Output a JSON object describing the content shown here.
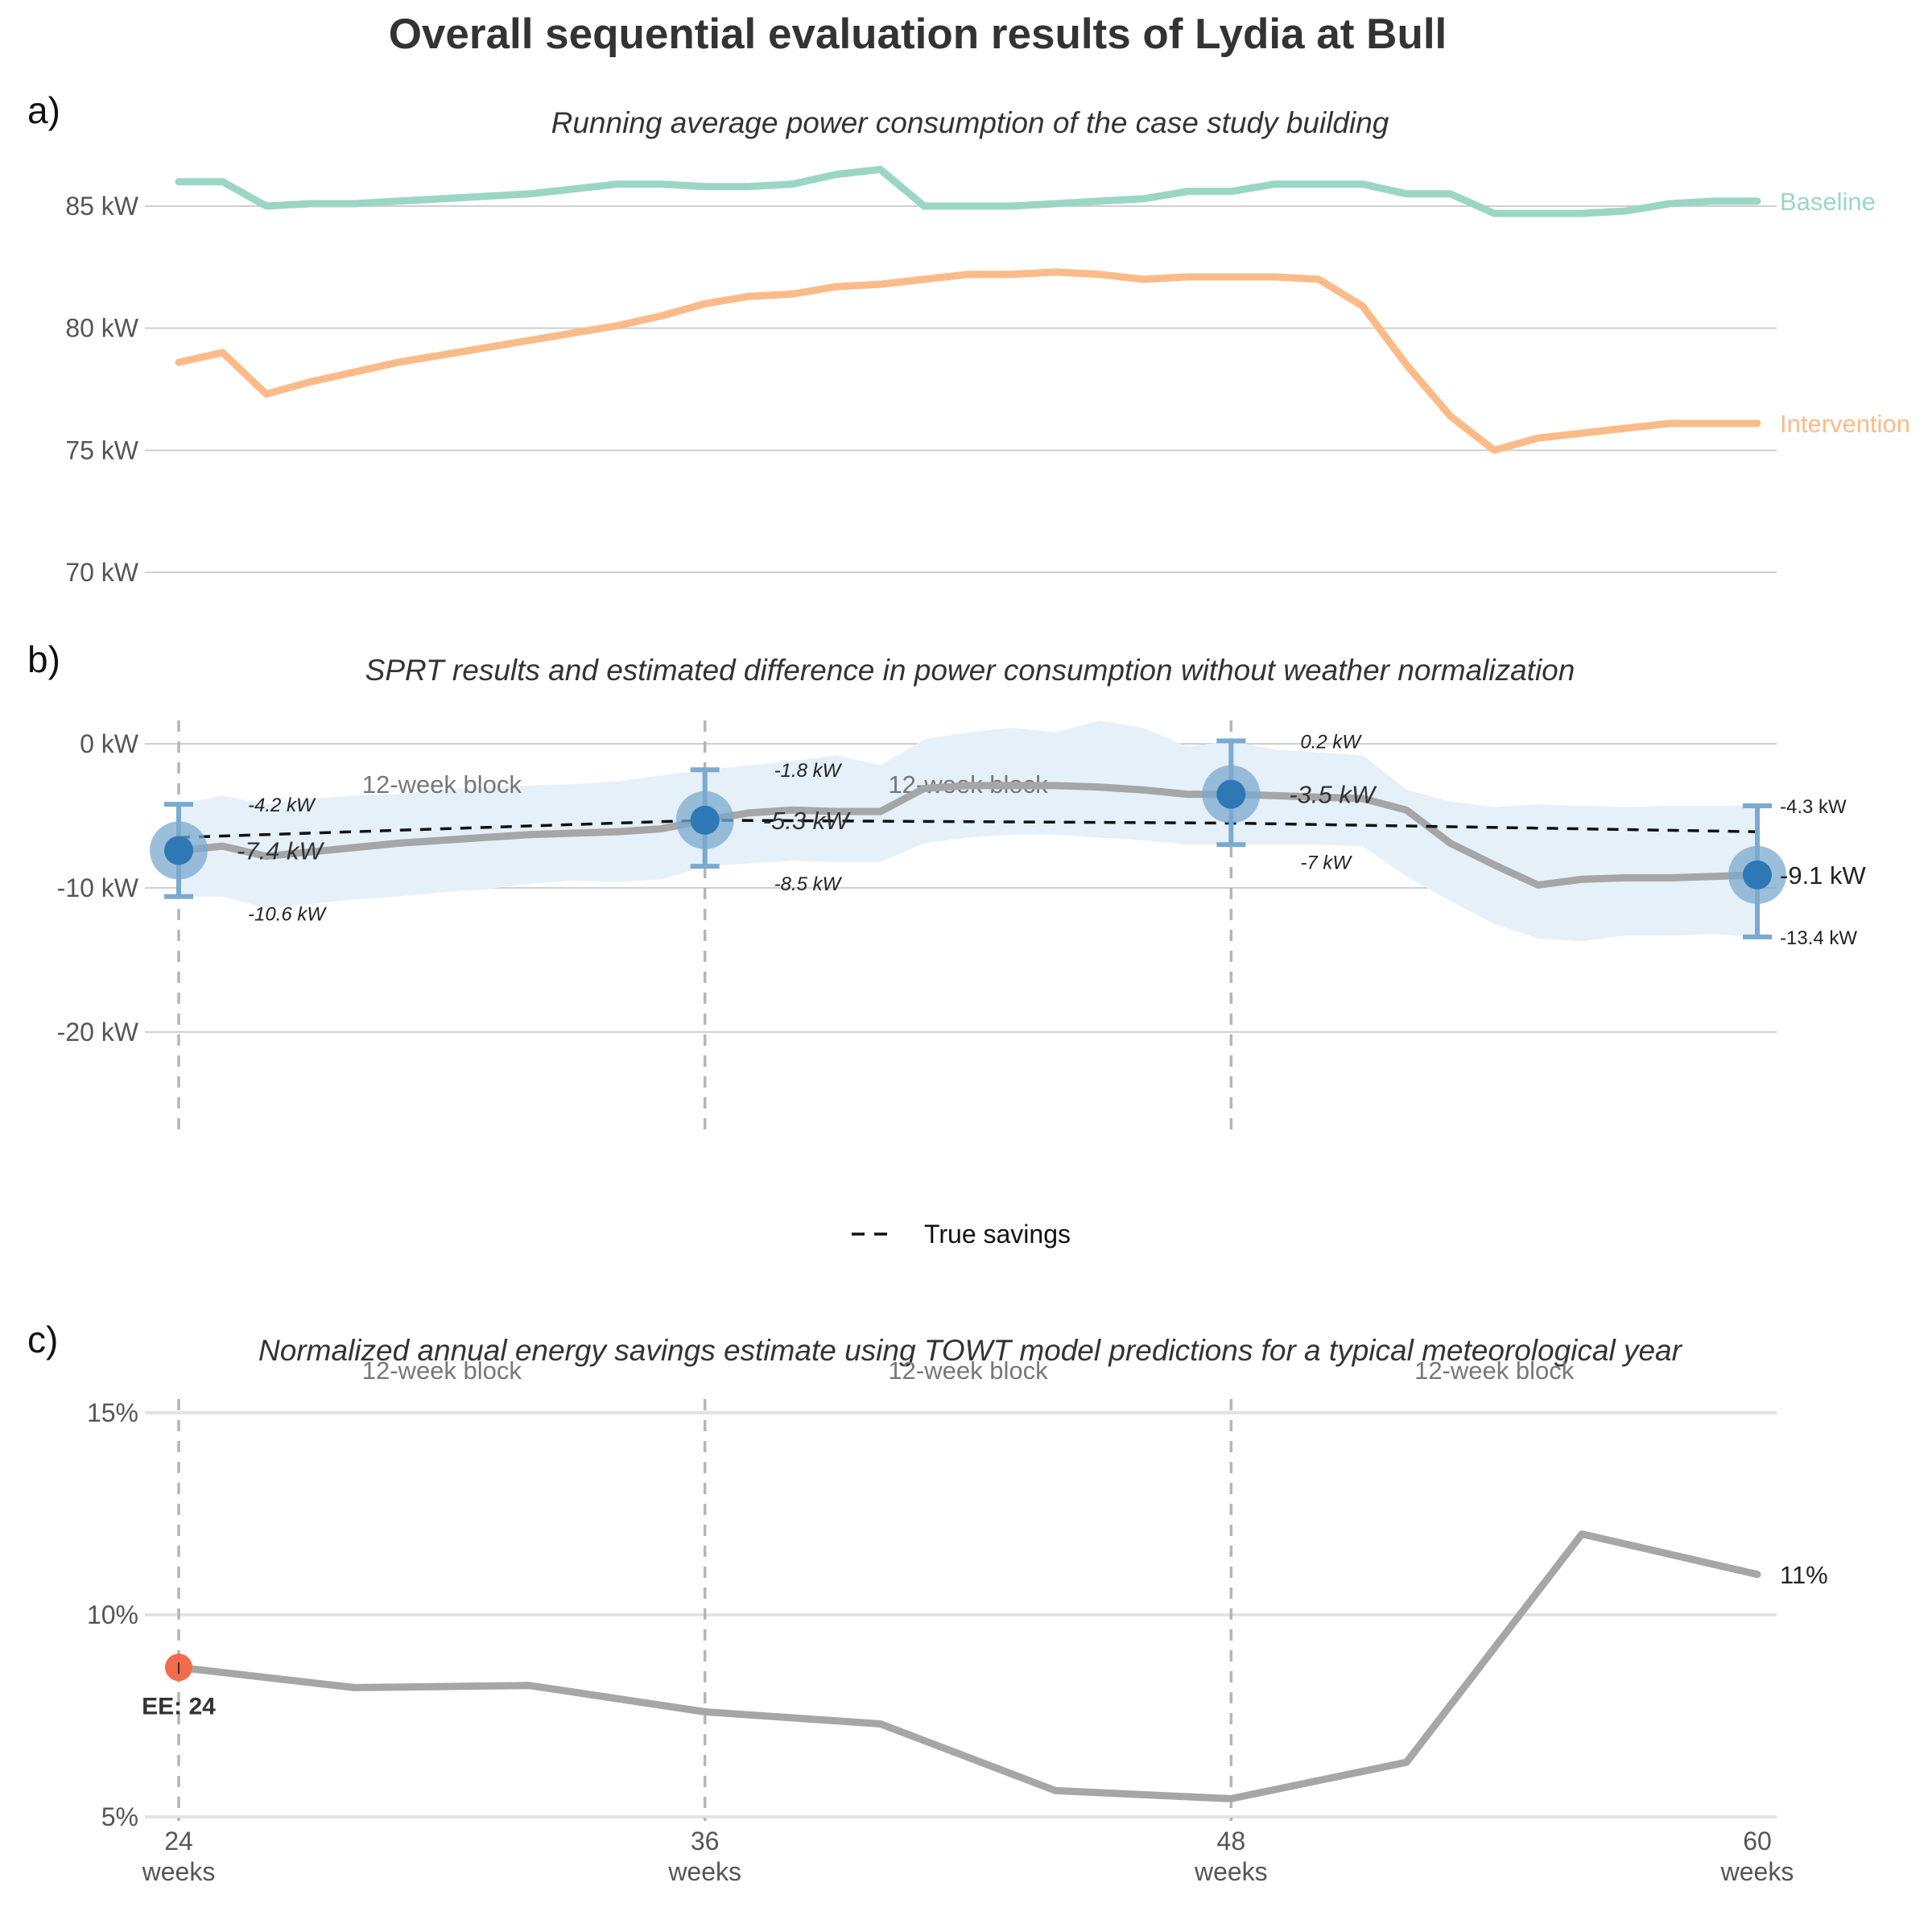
{
  "title": "Overall sequential evaluation results of Lydia at Bull",
  "panels": {
    "a": {
      "letter": "a)",
      "subtitle": "Running average power consumption of the case study building"
    },
    "b": {
      "letter": "b)",
      "subtitle": "SPRT results and estimated difference in power consumption without weather normalization"
    },
    "c": {
      "letter": "c)",
      "subtitle": "Normalized annual energy savings estimate using TOWT model predictions for a typical meteorological year"
    }
  },
  "block_label": "12-week block",
  "legend": {
    "true_savings": "True savings"
  },
  "colors": {
    "baseline": "#9bd6c4",
    "intervention": "#fbbb88",
    "estimate": "#a6a6a6",
    "ci_band": "#e5f0f8",
    "sprt_point": "#2e78b5",
    "sprt_halo": "#7aa9cf",
    "errorbar": "#7aaad0",
    "ee_point": "#f26b4c"
  },
  "chart_data": [
    {
      "id": "a",
      "type": "line",
      "xlim": [
        24,
        60
      ],
      "ylim": [
        68,
        88
      ],
      "yticks": [
        70,
        75,
        80,
        85
      ],
      "ytick_labels": [
        "70 kW",
        "75 kW",
        "80 kW",
        "85 kW"
      ],
      "series": [
        {
          "name": "Baseline",
          "color_key": "baseline",
          "x": [
            24,
            25,
            26,
            27,
            28,
            29,
            30,
            31,
            32,
            33,
            34,
            35,
            36,
            37,
            38,
            39,
            40,
            41,
            42,
            43,
            44,
            45,
            46,
            47,
            48,
            49,
            50,
            51,
            52,
            53,
            54,
            55,
            56,
            57,
            58,
            59,
            60
          ],
          "y": [
            86.0,
            86.0,
            85.0,
            85.1,
            85.1,
            85.2,
            85.3,
            85.4,
            85.5,
            85.7,
            85.9,
            85.9,
            85.8,
            85.8,
            85.9,
            86.3,
            86.5,
            85.0,
            85.0,
            85.0,
            85.1,
            85.2,
            85.3,
            85.6,
            85.6,
            85.9,
            85.9,
            85.9,
            85.5,
            85.5,
            84.7,
            84.7,
            84.7,
            84.8,
            85.1,
            85.2,
            85.2
          ]
        },
        {
          "name": "Intervention",
          "color_key": "intervention",
          "x": [
            24,
            25,
            26,
            27,
            28,
            29,
            30,
            31,
            32,
            33,
            34,
            35,
            36,
            37,
            38,
            39,
            40,
            41,
            42,
            43,
            44,
            45,
            46,
            47,
            48,
            49,
            50,
            51,
            52,
            53,
            54,
            55,
            56,
            57,
            58,
            59,
            60
          ],
          "y": [
            78.6,
            79.0,
            77.3,
            77.8,
            78.2,
            78.6,
            78.9,
            79.2,
            79.5,
            79.8,
            80.1,
            80.5,
            81.0,
            81.3,
            81.4,
            81.7,
            81.8,
            82.0,
            82.2,
            82.2,
            82.3,
            82.2,
            82.0,
            82.1,
            82.1,
            82.1,
            82.0,
            80.9,
            78.5,
            76.4,
            75.0,
            75.5,
            75.7,
            75.9,
            76.1,
            76.1,
            76.1
          ]
        }
      ]
    },
    {
      "id": "b",
      "type": "line",
      "xlim": [
        24,
        60
      ],
      "ylim": [
        -27,
        2
      ],
      "yticks": [
        0,
        -10,
        -20
      ],
      "ytick_labels": [
        "0 kW",
        "-10 kW",
        "-20 kW"
      ],
      "estimate": {
        "x": [
          24,
          25,
          26,
          27,
          28,
          29,
          30,
          31,
          32,
          33,
          34,
          35,
          36,
          37,
          38,
          39,
          40,
          41,
          42,
          43,
          44,
          45,
          46,
          47,
          48,
          49,
          50,
          51,
          52,
          53,
          54,
          55,
          56,
          57,
          58,
          59,
          60
        ],
        "y": [
          -7.4,
          -7.1,
          -7.8,
          -7.5,
          -7.2,
          -6.9,
          -6.7,
          -6.5,
          -6.3,
          -6.2,
          -6.1,
          -5.9,
          -5.3,
          -4.8,
          -4.6,
          -4.7,
          -4.7,
          -3.1,
          -2.9,
          -2.9,
          -2.9,
          -3.0,
          -3.2,
          -3.5,
          -3.5,
          -3.6,
          -3.7,
          -3.8,
          -4.6,
          -6.9,
          -8.4,
          -9.8,
          -9.4,
          -9.3,
          -9.3,
          -9.2,
          -9.1
        ]
      },
      "ci_upper": [
        -4.2,
        -3.6,
        -4.2,
        -3.8,
        -3.6,
        -3.5,
        -3.2,
        -3.0,
        -2.9,
        -2.8,
        -2.6,
        -2.2,
        -1.8,
        -1.5,
        -1.2,
        -0.8,
        -1.5,
        0.3,
        0.8,
        1.1,
        0.8,
        1.6,
        1.1,
        -0.2,
        0.2,
        -0.4,
        -0.6,
        -0.8,
        -3.2,
        -4.0,
        -4.4,
        -4.2,
        -4.3,
        -4.4,
        -4.3,
        -4.3,
        -4.3
      ],
      "ci_lower": [
        -10.6,
        -10.6,
        -11.4,
        -11.1,
        -10.8,
        -10.6,
        -10.3,
        -10.1,
        -9.7,
        -9.5,
        -9.6,
        -9.4,
        -8.5,
        -8.3,
        -8.1,
        -8.2,
        -8.2,
        -6.9,
        -6.5,
        -6.3,
        -6.3,
        -6.5,
        -6.7,
        -7.0,
        -7.0,
        -7.0,
        -7.0,
        -7.1,
        -9.2,
        -10.9,
        -12.5,
        -13.5,
        -13.7,
        -13.3,
        -13.3,
        -13.2,
        -13.4
      ],
      "true_savings": {
        "x": [
          24,
          36,
          48,
          60
        ],
        "y": [
          -6.5,
          -5.3,
          -5.5,
          -6.1
        ]
      },
      "sprt_points": [
        {
          "x": 24,
          "estimate": -7.4,
          "upper": -4.2,
          "lower": -10.6,
          "estimate_label": "-7.4 kW",
          "upper_label": "-4.2 kW",
          "lower_label": "-10.6 kW"
        },
        {
          "x": 36,
          "estimate": -5.3,
          "upper": -1.8,
          "lower": -8.5,
          "estimate_label": "-5.3 kW",
          "upper_label": "-1.8 kW",
          "lower_label": "-8.5 kW"
        },
        {
          "x": 48,
          "estimate": -3.5,
          "upper": 0.2,
          "lower": -7.0,
          "estimate_label": "-3.5 kW",
          "upper_label": "0.2 kW",
          "lower_label": "-7 kW"
        },
        {
          "x": 60,
          "estimate": -9.1,
          "upper": -4.3,
          "lower": -13.4,
          "estimate_label": "-9.1 kW",
          "upper_label": "-4.3 kW",
          "lower_label": "-13.4 kW"
        }
      ],
      "vlines": [
        24,
        36,
        48
      ]
    },
    {
      "id": "c",
      "type": "line",
      "xlim": [
        24,
        60
      ],
      "ylim": [
        5,
        15.5
      ],
      "yticks": [
        5,
        10,
        15
      ],
      "ytick_labels": [
        "5%",
        "10%",
        "15%"
      ],
      "xticks": [
        24,
        36,
        48,
        60
      ],
      "xtick_labels": [
        "24",
        "36",
        "48",
        "60"
      ],
      "xtick_unit": "weeks",
      "estimate": {
        "x": [
          24,
          28,
          32,
          36,
          40,
          44,
          48,
          52,
          56,
          60
        ],
        "y": [
          8.7,
          8.2,
          8.25,
          7.6,
          7.3,
          5.65,
          5.45,
          6.35,
          12.0,
          11.0
        ]
      },
      "ee_point": {
        "x": 24,
        "y": 8.7,
        "label": "EE: 24"
      },
      "end_label": "11%",
      "vlines": [
        24,
        36,
        48
      ]
    }
  ]
}
